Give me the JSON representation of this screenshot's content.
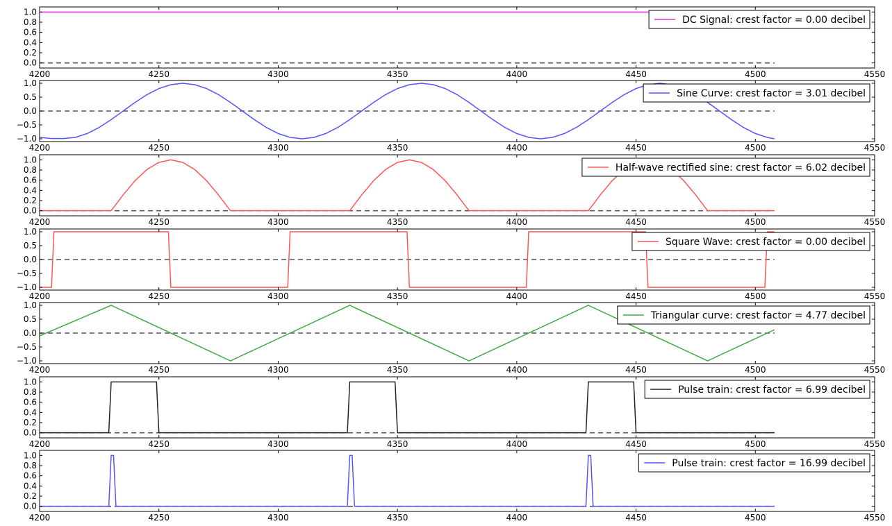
{
  "chart_data": [
    {
      "type": "line",
      "xlim": [
        4200,
        4550
      ],
      "ylim": [
        -0.1,
        1.1
      ],
      "xticks": [
        4200,
        4250,
        4300,
        4350,
        4400,
        4450,
        4500,
        4550
      ],
      "yticks": [
        0.0,
        0.2,
        0.4,
        0.6,
        0.8,
        1.0
      ],
      "ytick_labels": [
        "0.0",
        "0.2",
        "0.4",
        "0.6",
        "0.8",
        "1.0"
      ],
      "xtick_labels": [
        "4200",
        "4250",
        "4300",
        "4350",
        "4400",
        "4450",
        "4500",
        "4550"
      ],
      "grid": false,
      "legend_position": "top-right",
      "baseline": {
        "y": 0.0,
        "style": "dashed",
        "color": "#555555"
      },
      "series": [
        {
          "name": "DC Signal: crest factor = 0.00 decibel",
          "color": "#dd33dd",
          "x": [
            4200,
            4508
          ],
          "y": [
            1.0,
            1.0
          ]
        }
      ]
    },
    {
      "type": "line",
      "xlim": [
        4200,
        4550
      ],
      "ylim": [
        -1.1,
        1.1
      ],
      "xticks": [
        4200,
        4250,
        4300,
        4350,
        4400,
        4450,
        4500,
        4550
      ],
      "yticks": [
        -1.0,
        -0.5,
        0.0,
        0.5,
        1.0
      ],
      "ytick_labels": [
        "−1.0",
        "−0.5",
        "0.0",
        "0.5",
        "1.0"
      ],
      "xtick_labels": [
        "4200",
        "4250",
        "4300",
        "4350",
        "4400",
        "4450",
        "4500",
        "4550"
      ],
      "grid": false,
      "legend_position": "top-right",
      "baseline": {
        "y": 0.0,
        "style": "dashed",
        "color": "#555555"
      },
      "series": [
        {
          "name": "Sine Curve: crest factor = 3.01 decibel",
          "color": "#5555ff",
          "x": [
            4200,
            4205,
            4210,
            4215,
            4220,
            4225,
            4230,
            4235,
            4240,
            4245,
            4250,
            4255,
            4260,
            4265,
            4270,
            4275,
            4280,
            4285,
            4290,
            4295,
            4300,
            4305,
            4310,
            4315,
            4320,
            4325,
            4330,
            4335,
            4340,
            4345,
            4350,
            4355,
            4360,
            4365,
            4370,
            4375,
            4380,
            4385,
            4390,
            4395,
            4400,
            4405,
            4410,
            4415,
            4420,
            4425,
            4430,
            4435,
            4440,
            4445,
            4450,
            4455,
            4460,
            4465,
            4470,
            4475,
            4480,
            4485,
            4490,
            4495,
            4500,
            4505,
            4508
          ],
          "y": [
            -0.95,
            -0.99,
            -0.99,
            -0.95,
            -0.81,
            -0.59,
            -0.31,
            0.0,
            0.31,
            0.59,
            0.81,
            0.95,
            1.0,
            0.95,
            0.81,
            0.59,
            0.31,
            0.0,
            -0.31,
            -0.59,
            -0.81,
            -0.95,
            -1.0,
            -0.95,
            -0.81,
            -0.59,
            -0.31,
            0.0,
            0.31,
            0.59,
            0.81,
            0.95,
            1.0,
            0.95,
            0.81,
            0.59,
            0.31,
            0.0,
            -0.31,
            -0.59,
            -0.81,
            -0.95,
            -1.0,
            -0.95,
            -0.81,
            -0.59,
            -0.31,
            0.0,
            0.31,
            0.59,
            0.81,
            0.95,
            1.0,
            0.95,
            0.81,
            0.59,
            0.31,
            0.0,
            -0.31,
            -0.59,
            -0.81,
            -0.95,
            -1.0
          ]
        }
      ]
    },
    {
      "type": "line",
      "xlim": [
        4200,
        4550
      ],
      "ylim": [
        -0.1,
        1.1
      ],
      "xticks": [
        4200,
        4250,
        4300,
        4350,
        4400,
        4450,
        4500,
        4550
      ],
      "yticks": [
        0.0,
        0.2,
        0.4,
        0.6,
        0.8,
        1.0
      ],
      "ytick_labels": [
        "0.0",
        "0.2",
        "0.4",
        "0.6",
        "0.8",
        "1.0"
      ],
      "xtick_labels": [
        "4200",
        "4250",
        "4300",
        "4350",
        "4400",
        "4450",
        "4500",
        "4550"
      ],
      "grid": false,
      "legend_position": "top-right",
      "baseline": {
        "y": 0.0,
        "style": "dashed",
        "color": "#555555"
      },
      "series": [
        {
          "name": "Half-wave rectified sine: crest factor = 6.02 decibel",
          "color": "#ff5555",
          "x": [
            4200,
            4230,
            4235,
            4240,
            4245,
            4250,
            4255,
            4260,
            4265,
            4270,
            4275,
            4280,
            4330,
            4335,
            4340,
            4345,
            4350,
            4355,
            4360,
            4365,
            4370,
            4375,
            4380,
            4430,
            4435,
            4440,
            4445,
            4450,
            4455,
            4460,
            4465,
            4470,
            4475,
            4480,
            4508
          ],
          "y": [
            0.0,
            0.0,
            0.31,
            0.59,
            0.81,
            0.95,
            1.0,
            0.95,
            0.81,
            0.59,
            0.31,
            0.0,
            0.0,
            0.31,
            0.59,
            0.81,
            0.95,
            1.0,
            0.95,
            0.81,
            0.59,
            0.31,
            0.0,
            0.0,
            0.31,
            0.59,
            0.81,
            0.95,
            1.0,
            0.95,
            0.81,
            0.59,
            0.31,
            0.0,
            0.0
          ]
        }
      ]
    },
    {
      "type": "line",
      "xlim": [
        4200,
        4550
      ],
      "ylim": [
        -1.1,
        1.1
      ],
      "xticks": [
        4200,
        4250,
        4300,
        4350,
        4400,
        4450,
        4500,
        4550
      ],
      "yticks": [
        -1.0,
        -0.5,
        0.0,
        0.5,
        1.0
      ],
      "ytick_labels": [
        "−1.0",
        "−0.5",
        "0.0",
        "0.5",
        "1.0"
      ],
      "xtick_labels": [
        "4200",
        "4250",
        "4300",
        "4350",
        "4400",
        "4450",
        "4500",
        "4550"
      ],
      "grid": false,
      "legend_position": "top-right",
      "baseline": {
        "y": 0.0,
        "style": "dashed",
        "color": "#555555"
      },
      "series": [
        {
          "name": "Square Wave: crest factor = 0.00 decibel",
          "color": "#ff5555",
          "x": [
            4200,
            4205,
            4206,
            4254,
            4255,
            4304,
            4305,
            4354,
            4355,
            4404,
            4405,
            4454,
            4455,
            4504,
            4505,
            4508
          ],
          "y": [
            -1.0,
            -1.0,
            1.0,
            1.0,
            -1.0,
            -1.0,
            1.0,
            1.0,
            -1.0,
            -1.0,
            1.0,
            1.0,
            -1.0,
            -1.0,
            1.0,
            1.0
          ]
        }
      ]
    },
    {
      "type": "line",
      "xlim": [
        4200,
        4550
      ],
      "ylim": [
        -1.1,
        1.1
      ],
      "xticks": [
        4200,
        4250,
        4300,
        4350,
        4400,
        4450,
        4500,
        4550
      ],
      "yticks": [
        -1.0,
        -0.5,
        0.0,
        0.5,
        1.0
      ],
      "ytick_labels": [
        "−1.0",
        "−0.5",
        "0.0",
        "0.5",
        "1.0"
      ],
      "xtick_labels": [
        "4200",
        "4250",
        "4300",
        "4350",
        "4400",
        "4450",
        "4500",
        "4550"
      ],
      "grid": false,
      "legend_position": "top-right",
      "baseline": {
        "y": 0.0,
        "style": "dashed",
        "color": "#555555"
      },
      "series": [
        {
          "name": "Triangular curve: crest factor = 4.77 decibel",
          "color": "#44aa44",
          "x": [
            4200,
            4230,
            4280,
            4330,
            4380,
            4430,
            4480,
            4508
          ],
          "y": [
            -0.1,
            1.0,
            -1.0,
            1.0,
            -1.0,
            1.0,
            -1.0,
            0.12
          ]
        }
      ]
    },
    {
      "type": "line",
      "xlim": [
        4200,
        4550
      ],
      "ylim": [
        -0.1,
        1.1
      ],
      "xticks": [
        4200,
        4250,
        4300,
        4350,
        4400,
        4450,
        4500,
        4550
      ],
      "yticks": [
        0.0,
        0.2,
        0.4,
        0.6,
        0.8,
        1.0
      ],
      "ytick_labels": [
        "0.0",
        "0.2",
        "0.4",
        "0.6",
        "0.8",
        "1.0"
      ],
      "xtick_labels": [
        "4200",
        "4250",
        "4300",
        "4350",
        "4400",
        "4450",
        "4500",
        "4550"
      ],
      "grid": false,
      "legend_position": "top-right",
      "baseline": {
        "y": 0.0,
        "style": "dashed",
        "color": "#555555"
      },
      "series": [
        {
          "name": "Pulse train: crest factor = 6.99 decibel",
          "color": "#222222",
          "x": [
            4200,
            4229,
            4230,
            4249,
            4250,
            4329,
            4330,
            4349,
            4350,
            4429,
            4430,
            4449,
            4450,
            4508
          ],
          "y": [
            0.0,
            0.0,
            1.0,
            1.0,
            0.0,
            0.0,
            1.0,
            1.0,
            0.0,
            0.0,
            1.0,
            1.0,
            0.0,
            0.0
          ]
        }
      ]
    },
    {
      "type": "line",
      "xlim": [
        4200,
        4550
      ],
      "ylim": [
        -0.1,
        1.1
      ],
      "xticks": [
        4200,
        4250,
        4300,
        4350,
        4400,
        4450,
        4500,
        4550
      ],
      "yticks": [
        0.0,
        0.2,
        0.4,
        0.6,
        0.8,
        1.0
      ],
      "ytick_labels": [
        "0.0",
        "0.2",
        "0.4",
        "0.6",
        "0.8",
        "1.0"
      ],
      "xtick_labels": [
        "4200",
        "4250",
        "4300",
        "4350",
        "4400",
        "4450",
        "4500",
        "4550"
      ],
      "grid": false,
      "legend_position": "top-right",
      "baseline": {
        "y": 0.0,
        "style": "dashed",
        "color": "#555555"
      },
      "series": [
        {
          "name": "Pulse train: crest factor = 16.99 decibel",
          "color": "#5555ff",
          "x": [
            4200,
            4229,
            4230,
            4231,
            4232,
            4329,
            4330,
            4331,
            4332,
            4429,
            4430,
            4431,
            4432,
            4508
          ],
          "y": [
            0.0,
            0.0,
            1.0,
            1.0,
            0.0,
            0.0,
            1.0,
            1.0,
            0.0,
            0.0,
            1.0,
            1.0,
            0.0,
            0.0
          ]
        }
      ]
    }
  ]
}
